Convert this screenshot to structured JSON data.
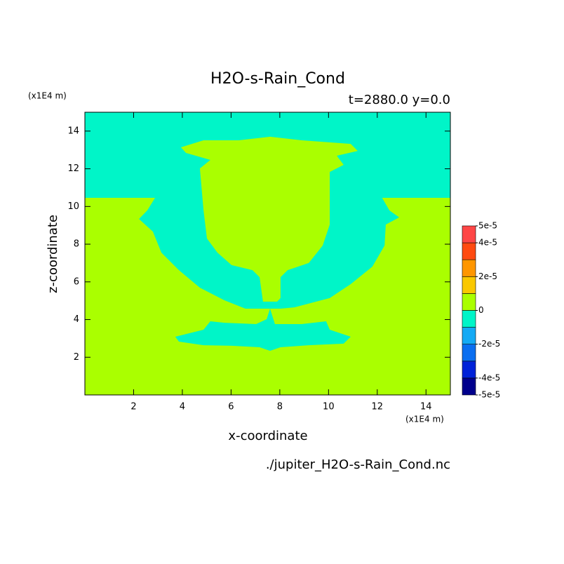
{
  "chart_data": {
    "type": "contourf",
    "title": "H2O-s-Rain_Cond",
    "subtitle": "t=2880.0 y=0.0",
    "x_label": "x-coordinate",
    "y_label": "z-coordinate",
    "x_unit": "(x1E4 m)",
    "y_unit": "(x1E4 m)",
    "footer": "./jupiter_H2O-s-Rain_Cond.nc",
    "xlim": [
      0,
      15
    ],
    "ylim": [
      0,
      15
    ],
    "xticks": [
      2,
      4,
      6,
      8,
      10,
      12,
      14
    ],
    "yticks": [
      2,
      4,
      6,
      8,
      10,
      12,
      14
    ],
    "levels": [
      -5e-05,
      -4e-05,
      -3e-05,
      -2e-05,
      -1e-05,
      0,
      1e-05,
      2e-05,
      3e-05,
      4e-05,
      5e-05
    ],
    "colors": [
      "#00008c",
      "#0022d8",
      "#0a6ef0",
      "#14aaf5",
      "#00f5c8",
      "#aaff00",
      "#fac800",
      "#ff9600",
      "#ff4a10",
      "#ff4646"
    ],
    "colorbar_ticks": [
      {
        "value": 5e-05,
        "label": "5e-5"
      },
      {
        "value": 4e-05,
        "label": "4e-5"
      },
      {
        "value": 2e-05,
        "label": "2e-5"
      },
      {
        "value": 0,
        "label": "0"
      },
      {
        "value": -2e-05,
        "label": "-2e-5"
      },
      {
        "value": -4e-05,
        "label": "-4e-5"
      },
      {
        "value": -5e-05,
        "label": "-5e-5"
      }
    ],
    "regions": [
      {
        "range": [
          0,
          1e-05
        ],
        "polygon": [
          [
            0,
            0
          ],
          [
            15,
            0
          ],
          [
            15,
            15
          ],
          [
            0,
            15
          ]
        ]
      },
      {
        "range": [
          -1e-05,
          0
        ],
        "polygon": [
          [
            0,
            15
          ],
          [
            15,
            15
          ],
          [
            15,
            10.46
          ],
          [
            12.2,
            10.46
          ],
          [
            12.5,
            9.79
          ],
          [
            12.9,
            9.42
          ],
          [
            12.35,
            9.04
          ],
          [
            12.3,
            7.93
          ],
          [
            11.8,
            6.81
          ],
          [
            10.91,
            5.88
          ],
          [
            10.05,
            5.14
          ],
          [
            8.6,
            4.65
          ],
          [
            8.03,
            4.58
          ],
          [
            7.17,
            4.58
          ],
          [
            6.59,
            4.58
          ],
          [
            5.73,
            5.02
          ],
          [
            4.72,
            5.69
          ],
          [
            3.86,
            6.62
          ],
          [
            3.14,
            7.55
          ],
          [
            2.79,
            8.67
          ],
          [
            2.22,
            9.34
          ],
          [
            2.56,
            9.79
          ],
          [
            2.88,
            10.46
          ],
          [
            0,
            10.46
          ]
        ]
      },
      {
        "range": [
          0,
          1e-05
        ],
        "polygon": [
          [
            3.94,
            13.14
          ],
          [
            4.87,
            13.51
          ],
          [
            6.31,
            13.51
          ],
          [
            7.6,
            13.7
          ],
          [
            8.9,
            13.51
          ],
          [
            10.91,
            13.32
          ],
          [
            11.2,
            12.95
          ],
          [
            10.34,
            12.69
          ],
          [
            10.62,
            12.21
          ],
          [
            10.05,
            11.83
          ],
          [
            10.05,
            9.04
          ],
          [
            9.76,
            7.93
          ],
          [
            9.19,
            7.0
          ],
          [
            8.32,
            6.62
          ],
          [
            8.03,
            6.25
          ],
          [
            8.03,
            5.14
          ],
          [
            7.89,
            4.95
          ],
          [
            7.31,
            4.95
          ],
          [
            7.17,
            6.25
          ],
          [
            6.88,
            6.62
          ],
          [
            6.02,
            6.89
          ],
          [
            5.44,
            7.55
          ],
          [
            5.01,
            8.3
          ],
          [
            4.87,
            9.79
          ],
          [
            4.72,
            12.02
          ],
          [
            5.15,
            12.47
          ],
          [
            4.15,
            12.84
          ]
        ]
      },
      {
        "range": [
          -1e-05,
          0
        ],
        "polygon": [
          [
            3.71,
            3.09
          ],
          [
            4.87,
            3.46
          ],
          [
            5.15,
            3.91
          ],
          [
            5.73,
            3.83
          ],
          [
            7.03,
            3.76
          ],
          [
            7.46,
            4.02
          ],
          [
            7.6,
            4.58
          ],
          [
            7.8,
            3.76
          ],
          [
            8.9,
            3.76
          ],
          [
            9.9,
            3.91
          ],
          [
            10.05,
            3.46
          ],
          [
            10.91,
            3.09
          ],
          [
            10.62,
            2.72
          ],
          [
            9.19,
            2.64
          ],
          [
            8.03,
            2.53
          ],
          [
            7.6,
            2.34
          ],
          [
            7.17,
            2.53
          ],
          [
            6.02,
            2.61
          ],
          [
            4.87,
            2.64
          ],
          [
            3.86,
            2.83
          ]
        ]
      }
    ]
  }
}
